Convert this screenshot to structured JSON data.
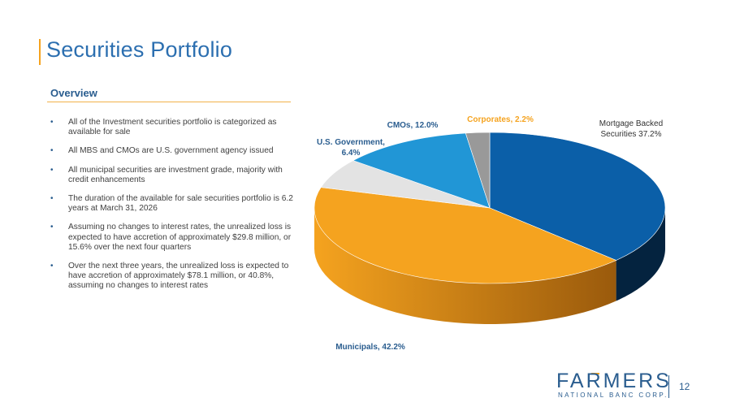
{
  "title": "Securities Portfolio",
  "overview": {
    "heading": "Overview",
    "bullets": [
      "All of the Investment securities portfolio is categorized as available for sale",
      "All MBS and CMOs are U.S. government agency issued",
      "All municipal securities are investment grade, majority with credit enhancements",
      "The duration of the available for sale securities portfolio is 6.2 years at March 31, 2026",
      "Assuming no changes to interest rates, the unrealized loss is expected to have accretion of approximately $29.8 million, or 15.6% over the next four quarters",
      "Over the next three years, the unrealized loss is expected to have accretion of approximately $78.1 million, or 40.8%, assuming no changes to interest rates"
    ]
  },
  "chart_data": {
    "type": "pie",
    "style": "3d",
    "title": "",
    "slices": [
      {
        "name": "Mortgage Backed Securities",
        "value": 37.2,
        "label_lines": [
          "Mortgage Backed",
          "Securities 37.2%"
        ],
        "color": "#0b5fa8",
        "side_color": "#04233f"
      },
      {
        "name": "Municipals",
        "value": 42.2,
        "label_lines": [
          "Municipals, 42.2%"
        ],
        "color": "#f5a31f",
        "side_color": "#9a5a0c"
      },
      {
        "name": "U.S. Government",
        "value": 6.4,
        "label_lines": [
          "U.S. Government,",
          "6.4%"
        ],
        "color": "#e3e3e3",
        "side_color": "#9c9c9c"
      },
      {
        "name": "CMOs",
        "value": 12.0,
        "label_lines": [
          "CMOs, 12.0%"
        ],
        "color": "#2196d6",
        "side_color": "#0d5c8a"
      },
      {
        "name": "Corporates",
        "value": 2.2,
        "label_lines": [
          "Corporates, 2.2%"
        ],
        "color": "#999999",
        "side_color": "#5e5e5e"
      }
    ]
  },
  "logo": {
    "main": "FARMERS",
    "sub": "NATIONAL BANC CORP."
  },
  "page_number": "12"
}
